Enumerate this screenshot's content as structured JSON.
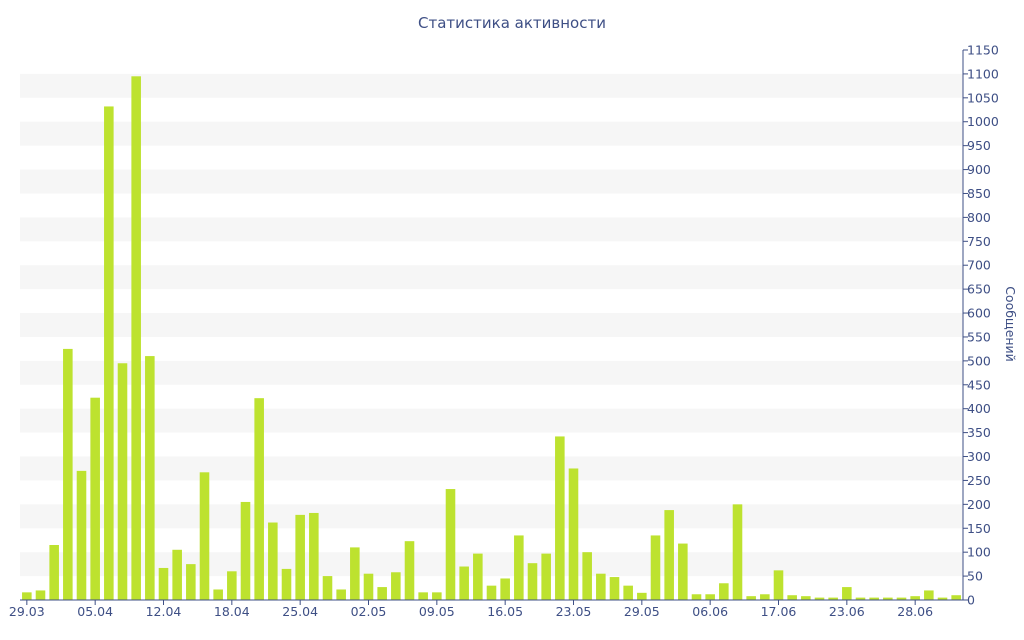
{
  "chart_data": {
    "type": "bar",
    "title": "Статистика активности",
    "xlabel": "",
    "ylabel": "Сообщений",
    "y_axis_side": "right",
    "ylim": [
      0,
      1150
    ],
    "y_ticks": [
      0,
      50,
      100,
      150,
      200,
      250,
      300,
      350,
      400,
      450,
      500,
      550,
      600,
      650,
      700,
      750,
      800,
      850,
      900,
      950,
      1000,
      1050,
      1100,
      1150
    ],
    "x_ticks": [
      {
        "label": "29.03",
        "index": 0
      },
      {
        "label": "05.04",
        "index": 5
      },
      {
        "label": "12.04",
        "index": 10
      },
      {
        "label": "18.04",
        "index": 15
      },
      {
        "label": "25.04",
        "index": 20
      },
      {
        "label": "02.05",
        "index": 25
      },
      {
        "label": "09.05",
        "index": 30
      },
      {
        "label": "16.05",
        "index": 35
      },
      {
        "label": "23.05",
        "index": 40
      },
      {
        "label": "29.05",
        "index": 45
      },
      {
        "label": "06.06",
        "index": 50
      },
      {
        "label": "17.06",
        "index": 55
      },
      {
        "label": "23.06",
        "index": 60
      },
      {
        "label": "28.06",
        "index": 65
      }
    ],
    "bar_color": "#bde22f",
    "band_color": "#f6f6f6",
    "text_color": "#3e4f85",
    "values": [
      16,
      20,
      115,
      525,
      270,
      423,
      1032,
      495,
      1095,
      510,
      67,
      105,
      75,
      267,
      22,
      60,
      205,
      422,
      162,
      65,
      178,
      182,
      50,
      22,
      110,
      55,
      27,
      58,
      123,
      16,
      16,
      232,
      70,
      97,
      30,
      45,
      135,
      77,
      97,
      342,
      275,
      100,
      55,
      48,
      30,
      15,
      135,
      188,
      118,
      12,
      12,
      35,
      200,
      8,
      12,
      62,
      10,
      8,
      5,
      5,
      27,
      5,
      5,
      5,
      5,
      8,
      20,
      5,
      10
    ]
  }
}
